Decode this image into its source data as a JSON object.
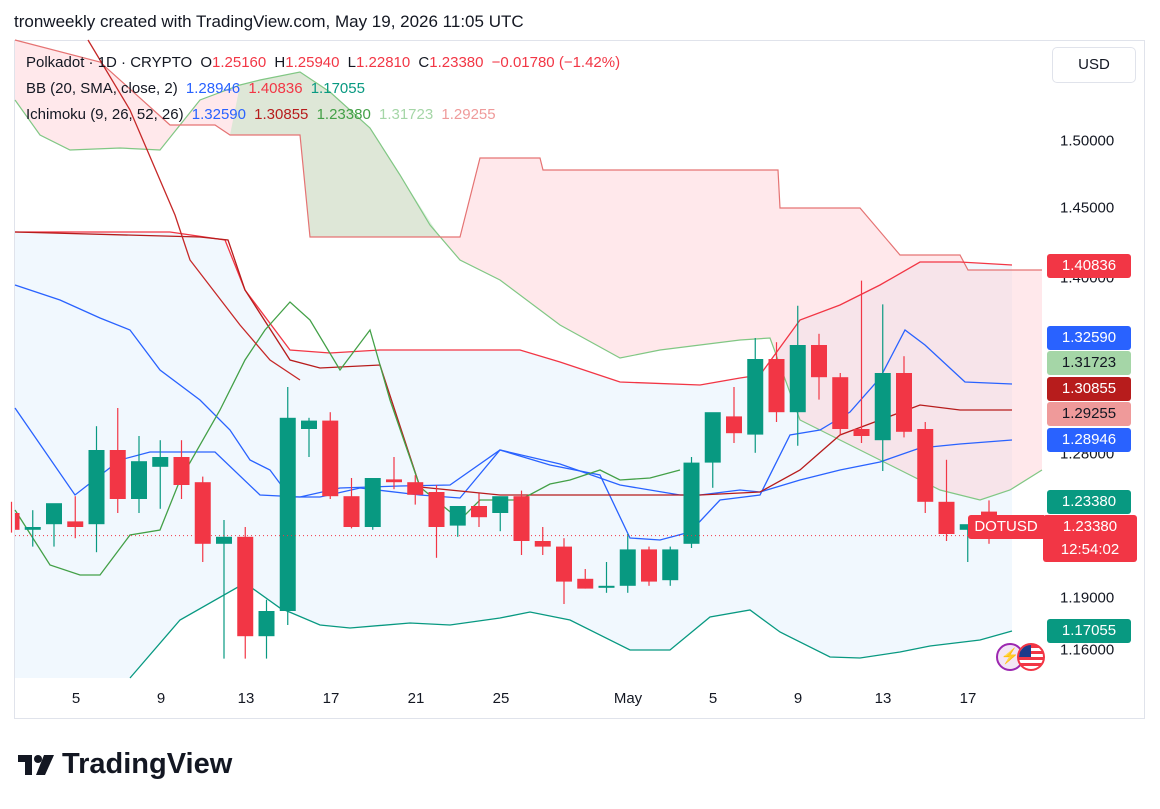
{
  "header": {
    "text": "tronweekly created with TradingView.com, May 19, 2026 11:05 UTC"
  },
  "legend": {
    "symbol": "Polkadot · 1D · CRYPTO",
    "o_label": "O",
    "o": "1.25160",
    "h_label": "H",
    "h": "1.25940",
    "l_label": "L",
    "l": "1.22810",
    "c_label": "C",
    "c": "1.23380",
    "change": "−0.01780 (−1.42%)",
    "bb_label": "BB (20, SMA, close, 2)",
    "bb_basis": "1.28946",
    "bb_upper": "1.40836",
    "bb_lower": "1.17055",
    "ichi_label": "Ichimoku (9, 26, 52, 26)",
    "ichi_conv": "1.32590",
    "ichi_base": "1.30855",
    "ichi_lag": "1.23380",
    "ichi_spanA": "1.31723",
    "ichi_spanB": "1.29255"
  },
  "currency_button": "USD",
  "brand": "TradingView",
  "colors": {
    "up": "#089981",
    "down": "#f23645",
    "bb_basis": "#2962ff",
    "bb_upper": "#f23645",
    "bb_lower": "#089981",
    "conv": "#2962ff",
    "base": "#b71c1c",
    "lag": "#43a047",
    "spanA": "#a5d6a7",
    "spanB": "#ef9a9a"
  },
  "chart_data": {
    "type": "candlestick",
    "title": "Polkadot · 1D · CRYPTO",
    "ylim": [
      1.14,
      1.58
    ],
    "y_ticks": [
      "1.50000",
      "1.45000",
      "1.40000",
      "1.28000",
      "1.19000",
      "1.16000"
    ],
    "x_ticks": [
      "5",
      "9",
      "13",
      "17",
      "21",
      "25",
      "May",
      "5",
      "9",
      "13",
      "17"
    ],
    "price_labels": [
      {
        "text": "1.40836",
        "value": 1.40836,
        "color": "#f23645"
      },
      {
        "text": "1.32590",
        "value": 1.3259,
        "color": "#2962ff"
      },
      {
        "text": "1.31723",
        "value": 1.31723,
        "color": "#a5d6a7"
      },
      {
        "text": "1.30855",
        "value": 1.30855,
        "color": "#b71c1c"
      },
      {
        "text": "1.29255",
        "value": 1.29255,
        "color": "#ef9a9a"
      },
      {
        "text": "1.28946",
        "value": 1.28946,
        "color": "#2962ff"
      },
      {
        "text": "1.23380",
        "value": 1.2338,
        "color": "#089981"
      },
      {
        "text": "1.17055",
        "value": 1.17055,
        "color": "#089981"
      }
    ],
    "last_price": {
      "symbol": "DOTUSD",
      "price": "1.23380",
      "countdown": "12:54:02",
      "value": 1.2338
    },
    "candles": [
      {
        "o": 1.25,
        "h": 1.258,
        "l": 1.236,
        "c": 1.238
      },
      {
        "o": 1.238,
        "h": 1.252,
        "l": 1.226,
        "c": 1.24
      },
      {
        "o": 1.242,
        "h": 1.256,
        "l": 1.226,
        "c": 1.257
      },
      {
        "o": 1.244,
        "h": 1.262,
        "l": 1.232,
        "c": 1.24
      },
      {
        "o": 1.242,
        "h": 1.312,
        "l": 1.222,
        "c": 1.295
      },
      {
        "o": 1.295,
        "h": 1.325,
        "l": 1.25,
        "c": 1.26
      },
      {
        "o": 1.26,
        "h": 1.305,
        "l": 1.25,
        "c": 1.287
      },
      {
        "o": 1.283,
        "h": 1.302,
        "l": 1.253,
        "c": 1.29
      },
      {
        "o": 1.29,
        "h": 1.302,
        "l": 1.26,
        "c": 1.27
      },
      {
        "o": 1.272,
        "h": 1.276,
        "l": 1.215,
        "c": 1.228
      },
      {
        "o": 1.228,
        "h": 1.245,
        "l": 1.146,
        "c": 1.233
      },
      {
        "o": 1.233,
        "h": 1.24,
        "l": 1.146,
        "c": 1.162
      },
      {
        "o": 1.162,
        "h": 1.188,
        "l": 1.146,
        "c": 1.18
      },
      {
        "o": 1.18,
        "h": 1.34,
        "l": 1.17,
        "c": 1.318
      },
      {
        "o": 1.31,
        "h": 1.318,
        "l": 1.29,
        "c": 1.316
      },
      {
        "o": 1.316,
        "h": 1.322,
        "l": 1.26,
        "c": 1.262
      },
      {
        "o": 1.262,
        "h": 1.275,
        "l": 1.239,
        "c": 1.24
      },
      {
        "o": 1.24,
        "h": 1.275,
        "l": 1.238,
        "c": 1.275
      },
      {
        "o": 1.274,
        "h": 1.29,
        "l": 1.267,
        "c": 1.272
      },
      {
        "o": 1.272,
        "h": 1.277,
        "l": 1.256,
        "c": 1.263
      },
      {
        "o": 1.265,
        "h": 1.27,
        "l": 1.218,
        "c": 1.24
      },
      {
        "o": 1.241,
        "h": 1.255,
        "l": 1.233,
        "c": 1.255
      },
      {
        "o": 1.255,
        "h": 1.264,
        "l": 1.24,
        "c": 1.247
      },
      {
        "o": 1.25,
        "h": 1.26,
        "l": 1.237,
        "c": 1.262
      },
      {
        "o": 1.262,
        "h": 1.266,
        "l": 1.22,
        "c": 1.23
      },
      {
        "o": 1.23,
        "h": 1.24,
        "l": 1.22,
        "c": 1.226
      },
      {
        "o": 1.226,
        "h": 1.232,
        "l": 1.185,
        "c": 1.201
      },
      {
        "o": 1.203,
        "h": 1.21,
        "l": 1.196,
        "c": 1.196
      },
      {
        "o": 1.198,
        "h": 1.215,
        "l": 1.193,
        "c": 1.198
      },
      {
        "o": 1.198,
        "h": 1.235,
        "l": 1.193,
        "c": 1.224
      },
      {
        "o": 1.224,
        "h": 1.226,
        "l": 1.198,
        "c": 1.201
      },
      {
        "o": 1.202,
        "h": 1.226,
        "l": 1.198,
        "c": 1.224
      },
      {
        "o": 1.228,
        "h": 1.29,
        "l": 1.225,
        "c": 1.286
      },
      {
        "o": 1.286,
        "h": 1.318,
        "l": 1.268,
        "c": 1.322
      },
      {
        "o": 1.319,
        "h": 1.34,
        "l": 1.3,
        "c": 1.307
      },
      {
        "o": 1.306,
        "h": 1.375,
        "l": 1.293,
        "c": 1.36
      },
      {
        "o": 1.36,
        "h": 1.372,
        "l": 1.315,
        "c": 1.322
      },
      {
        "o": 1.322,
        "h": 1.398,
        "l": 1.298,
        "c": 1.37
      },
      {
        "o": 1.37,
        "h": 1.378,
        "l": 1.331,
        "c": 1.347
      },
      {
        "o": 1.347,
        "h": 1.35,
        "l": 1.306,
        "c": 1.31
      },
      {
        "o": 1.31,
        "h": 1.416,
        "l": 1.3,
        "c": 1.305
      },
      {
        "o": 1.302,
        "h": 1.399,
        "l": 1.28,
        "c": 1.35
      },
      {
        "o": 1.35,
        "h": 1.362,
        "l": 1.304,
        "c": 1.308
      },
      {
        "o": 1.31,
        "h": 1.315,
        "l": 1.25,
        "c": 1.258
      },
      {
        "o": 1.258,
        "h": 1.288,
        "l": 1.23,
        "c": 1.235
      },
      {
        "o": 1.238,
        "h": 1.241,
        "l": 1.215,
        "c": 1.242
      },
      {
        "o": 1.251,
        "h": 1.259,
        "l": 1.228,
        "c": 1.234
      }
    ]
  }
}
